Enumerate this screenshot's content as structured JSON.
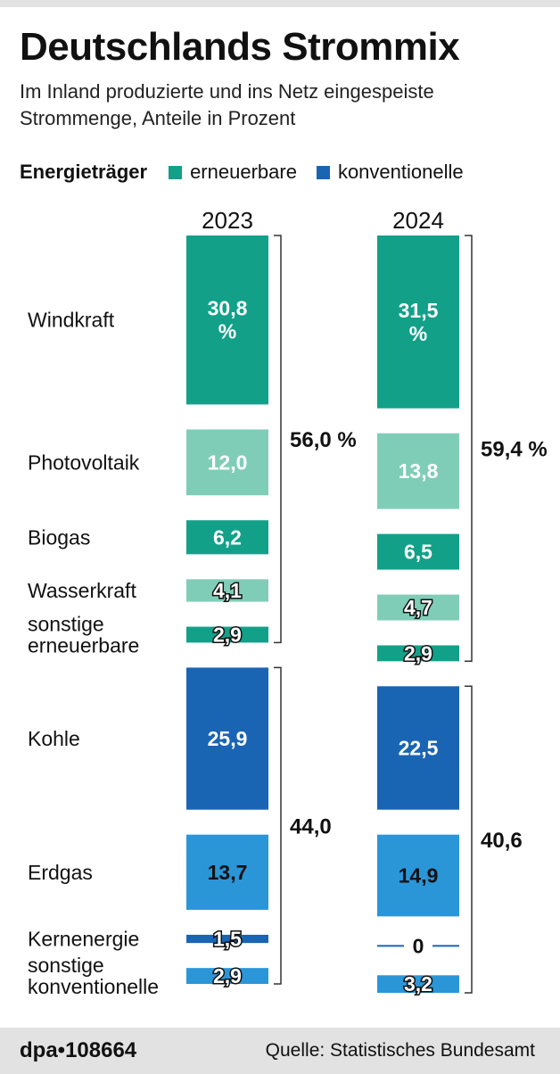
{
  "chart_data": {
    "type": "bar",
    "title": "Deutschlands Strommix",
    "subtitle": "Im Inland produzierte und ins Netz eingespeiste Strommenge, Anteile in Prozent",
    "legend": {
      "title": "Energieträger",
      "placement": "top",
      "entries": [
        {
          "label": "erneuerbare",
          "color": "#12a089"
        },
        {
          "label": "konventionelle",
          "color": "#1a64b4"
        }
      ]
    },
    "categories": [
      "Windkraft",
      "Photovoltaik",
      "Biogas",
      "Wasserkraft",
      "sonstige erneuerbare",
      "Kohle",
      "Erdgas",
      "Kernenergie",
      "sonstige konventionelle"
    ],
    "category_lines": [
      [
        "Windkraft"
      ],
      [
        "Photovoltaik"
      ],
      [
        "Biogas"
      ],
      [
        "Wasserkraft"
      ],
      [
        "sonstige",
        "erneuerbare"
      ],
      [
        "Kohle"
      ],
      [
        "Erdgas"
      ],
      [
        "Kernenergie"
      ],
      [
        "sonstige",
        "konventionelle"
      ]
    ],
    "category_group": [
      "erneuerbare",
      "erneuerbare",
      "erneuerbare",
      "erneuerbare",
      "erneuerbare",
      "konventionelle",
      "konventionelle",
      "konventionelle",
      "konventionelle"
    ],
    "category_colors": [
      "#12a089",
      "#80cdb7",
      "#12a089",
      "#80cdb7",
      "#12a089",
      "#1a64b4",
      "#2a96d8",
      "#1a64b4",
      "#2a96d8"
    ],
    "series": [
      {
        "name": "2023",
        "values": [
          30.8,
          12.0,
          6.2,
          4.1,
          2.9,
          25.9,
          13.7,
          1.5,
          2.9
        ],
        "labels": [
          "30,8|%",
          "12,0",
          "6,2",
          "4,1",
          "2,9",
          "25,9",
          "13,7",
          "1,5",
          "2,9"
        ],
        "totals": [
          {
            "group": "erneuerbare",
            "value": 56.0,
            "label": "56,0 %"
          },
          {
            "group": "konventionelle",
            "value": 44.0,
            "label": "44,0"
          }
        ]
      },
      {
        "name": "2024",
        "values": [
          31.5,
          13.8,
          6.5,
          4.7,
          2.9,
          22.5,
          14.9,
          0,
          3.2
        ],
        "labels": [
          "31,5|%",
          "13,8",
          "6,5",
          "4,7",
          "2,9",
          "22,5",
          "14,9",
          "0",
          "3,2"
        ],
        "totals": [
          {
            "group": "erneuerbare",
            "value": 59.4,
            "label": "59,4 %"
          },
          {
            "group": "konventionelle",
            "value": 40.6,
            "label": "40,6"
          }
        ]
      }
    ]
  },
  "footer": {
    "credit": "dpa•108664",
    "source": "Quelle: Statistisches Bundesamt"
  }
}
